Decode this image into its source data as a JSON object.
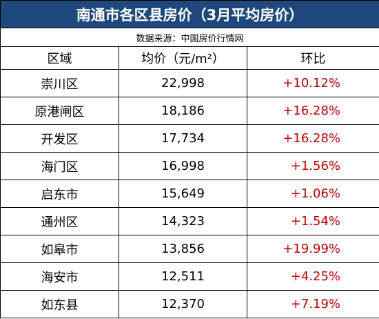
{
  "header": {
    "title": "南通市各区县房价（3月平均房价）",
    "source": "数据来源：中国房价行情网"
  },
  "table": {
    "columns": [
      "区域",
      "均价（元/m²）",
      "环比"
    ],
    "rows": [
      [
        "崇川区",
        "22,998",
        "+10.12%"
      ],
      [
        "原港闸区",
        "18,186",
        "+16.28%"
      ],
      [
        "开发区",
        "17,734",
        "+16.28%"
      ],
      [
        "海门区",
        "16,998",
        "+1.56%"
      ],
      [
        "启东市",
        "15,649",
        "+1.06%"
      ],
      [
        "通州区",
        "14,323",
        "+1.54%"
      ],
      [
        "如皋市",
        "13,856",
        "+19.99%"
      ],
      [
        "海安市",
        "12,511",
        "+4.25%"
      ],
      [
        "如东县",
        "12,370",
        "+7.19%"
      ]
    ]
  }
}
